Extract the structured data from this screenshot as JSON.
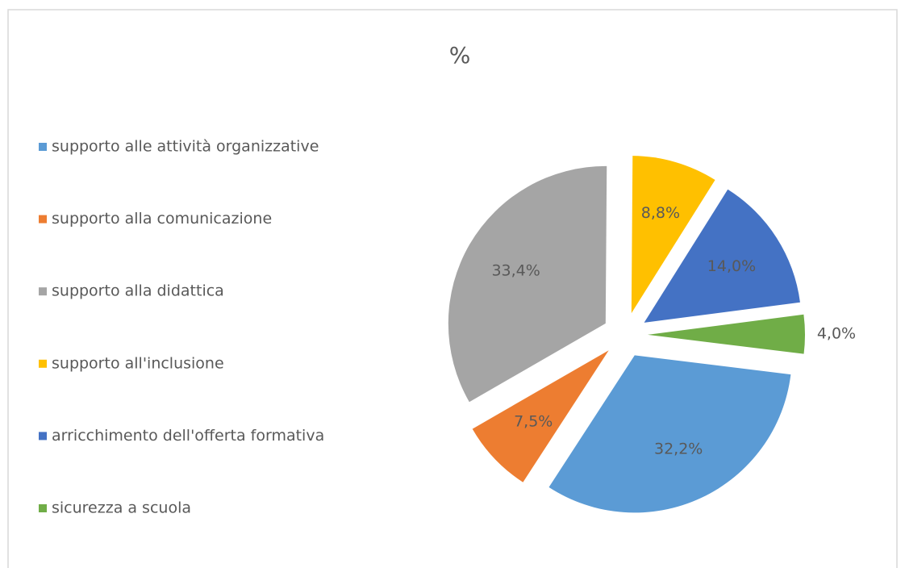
{
  "chart_data": {
    "type": "pie",
    "title": "%",
    "categories": [
      "supporto alle attività organizzative",
      "supporto alla comunicazione",
      "supporto alla didattica",
      "supporto all'inclusione",
      "arricchimento dell'offerta formativa",
      "sicurezza a scuola"
    ],
    "values": [
      32.2,
      7.5,
      33.4,
      8.8,
      14.0,
      4.0
    ],
    "value_labels": [
      "32,2%",
      "7,5%",
      "33,4%",
      "8,8%",
      "14,0%",
      "4,0%"
    ],
    "colors": [
      "#5b9bd5",
      "#ed7d31",
      "#a5a5a5",
      "#ffc000",
      "#4472c4",
      "#70ad47"
    ],
    "legend": "left"
  }
}
